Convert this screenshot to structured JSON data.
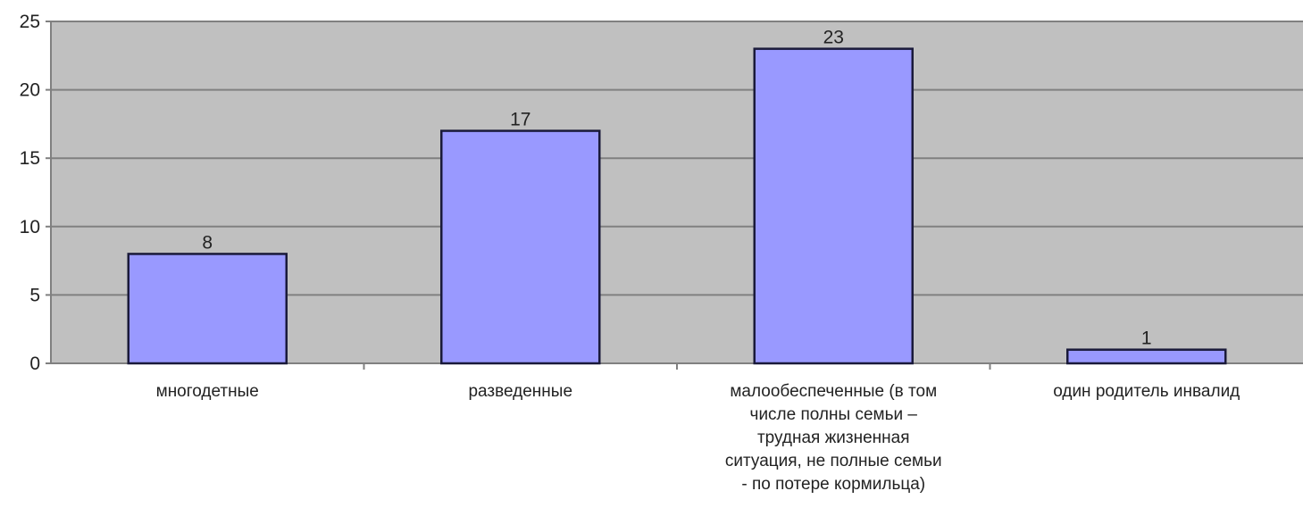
{
  "chart_data": {
    "type": "bar",
    "title": "",
    "xlabel": "",
    "ylabel": "",
    "categories": [
      "многодетные",
      "разведенные",
      "малообеспеченные (в том числе полны семьи – трудная жизненная ситуация, не полные семьи - по потере кормильца)",
      "один родитель инвалид"
    ],
    "category_lines": [
      [
        "многодетные"
      ],
      [
        "разведенные"
      ],
      [
        "малообеспеченные (в том",
        "числе полны семьи –",
        "трудная жизненная",
        "ситуация, не полные семьи",
        "- по потере кормильца)"
      ],
      [
        "один родитель инвалид"
      ]
    ],
    "values": [
      8,
      17,
      23,
      1
    ],
    "data_labels": [
      "8",
      "17",
      "23",
      "1"
    ],
    "ylim": [
      0,
      25
    ],
    "yticks": [
      0,
      5,
      10,
      15,
      20,
      25
    ],
    "ytick_labels": [
      "0",
      "5",
      "10",
      "15",
      "20",
      "25"
    ],
    "grid": true,
    "legend": "none",
    "colors": {
      "plot_background": "#c0c0c0",
      "bar_fill": "#9999ff",
      "bar_stroke": "#1a1a3a",
      "gridline": "#808080",
      "axis": "#808080"
    }
  }
}
